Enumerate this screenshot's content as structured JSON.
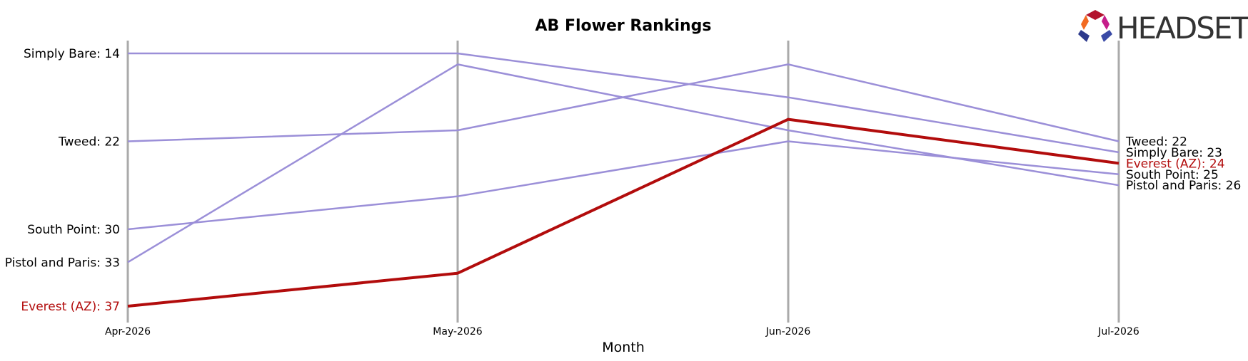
{
  "chart_data": {
    "type": "line",
    "title": "AB Flower Rankings",
    "xlabel": "Month",
    "ylabel": "",
    "x": [
      "Apr-2026",
      "May-2026",
      "Jun-2026",
      "Jul-2026"
    ],
    "y_inverted": true,
    "ylim": [
      13,
      37.5
    ],
    "grid": false,
    "series": [
      {
        "name": "Simply Bare",
        "values": [
          14,
          14,
          18,
          23
        ],
        "color": "#9b8fd8",
        "highlight": false
      },
      {
        "name": "Tweed",
        "values": [
          22,
          21,
          15,
          22
        ],
        "color": "#9b8fd8",
        "highlight": false
      },
      {
        "name": "South Point",
        "values": [
          30,
          27,
          22,
          25
        ],
        "color": "#9b8fd8",
        "highlight": false
      },
      {
        "name": "Pistol and Paris",
        "values": [
          33,
          15,
          21,
          26
        ],
        "color": "#9b8fd8",
        "highlight": false
      },
      {
        "name": "Everest (AZ)",
        "values": [
          37,
          34,
          20,
          24
        ],
        "color": "#b20c0c",
        "highlight": true
      }
    ],
    "start_labels": [
      {
        "series": "Simply Bare",
        "text": "Simply Bare: 14"
      },
      {
        "series": "Tweed",
        "text": "Tweed: 22"
      },
      {
        "series": "South Point",
        "text": "South Point: 30"
      },
      {
        "series": "Pistol and Paris",
        "text": "Pistol and Paris: 33"
      },
      {
        "series": "Everest (AZ)",
        "text": "Everest (AZ): 37"
      }
    ],
    "end_labels": [
      {
        "series": "Tweed",
        "text": "Tweed: 22"
      },
      {
        "series": "Simply Bare",
        "text": "Simply Bare: 23"
      },
      {
        "series": "Everest (AZ)",
        "text": "Everest (AZ): 24"
      },
      {
        "series": "South Point",
        "text": "South Point: 25"
      },
      {
        "series": "Pistol and Paris",
        "text": "Pistol and Paris: 26"
      }
    ]
  },
  "logo": {
    "text": "HEADSET",
    "icon": "headset-logo-icon"
  },
  "colors": {
    "highlight": "#b20c0c",
    "series": "#9b8fd8",
    "vertical_axis": "#aaaaaa",
    "text": "#000000"
  }
}
